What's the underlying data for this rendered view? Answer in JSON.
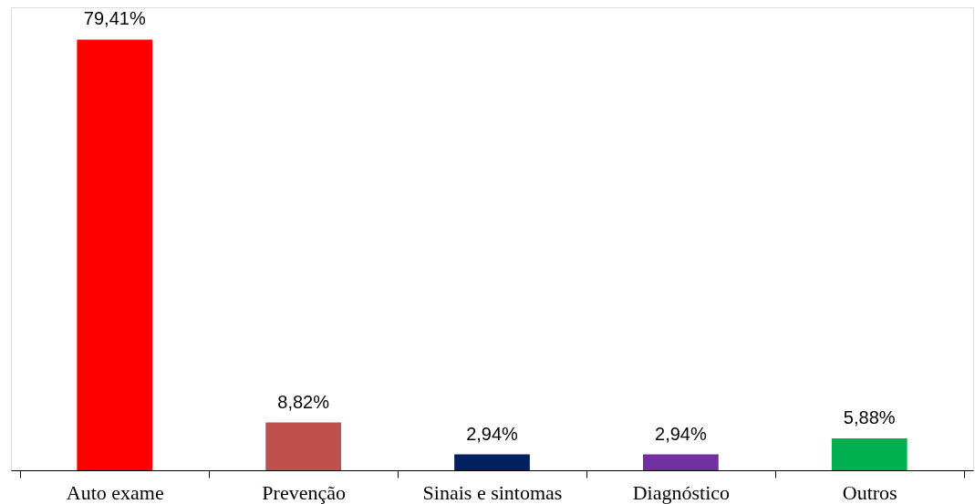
{
  "chart_data": {
    "type": "bar",
    "categories": [
      "Auto exame",
      "Prevenção",
      "Sinais e sintomas",
      "Diagnóstico",
      "Outros"
    ],
    "values": [
      79.41,
      8.82,
      2.94,
      2.94,
      5.88
    ],
    "colors": [
      "#ff0000",
      "#c0504d",
      "#002060",
      "#7030a0",
      "#00b050"
    ],
    "value_labels": [
      "79,41%",
      "8,82%",
      "2,94%",
      "2,94%",
      "5,88%"
    ],
    "grid": false
  }
}
